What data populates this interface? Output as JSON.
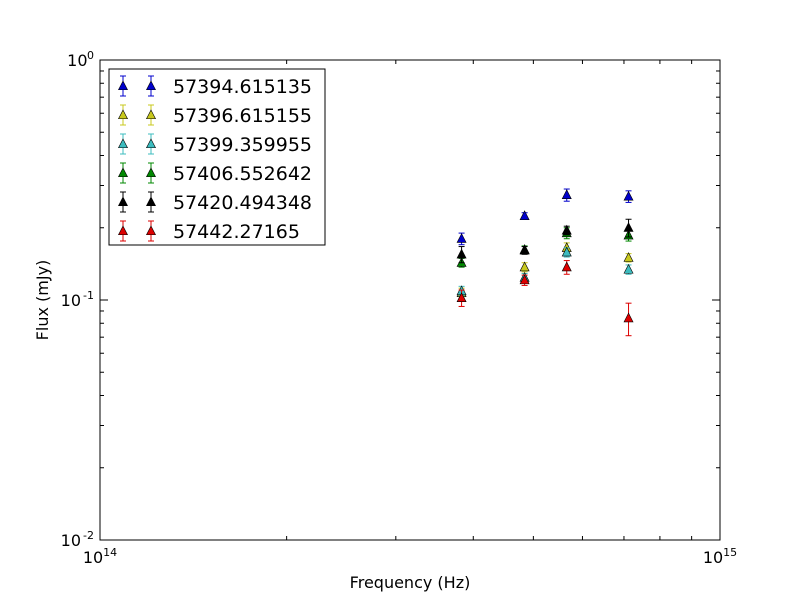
{
  "chart_data": {
    "type": "scatter",
    "title": "",
    "xlabel": "Frequency (Hz)",
    "ylabel": "Flux (mJy)",
    "xscale": "log",
    "yscale": "log",
    "xlim": [
      100000000000000.0,
      1000000000000000.0
    ],
    "ylim": [
      0.01,
      1.0
    ],
    "x_major_ticks": [
      {
        "value": 100000000000000.0,
        "base": "10",
        "exp": "14"
      },
      {
        "value": 1000000000000000.0,
        "base": "10",
        "exp": "15"
      }
    ],
    "y_major_ticks": [
      {
        "value": 0.01,
        "base": "10",
        "exp": "-2"
      },
      {
        "value": 0.1,
        "base": "10",
        "exp": "-1"
      },
      {
        "value": 1.0,
        "base": "10",
        "exp": "0"
      }
    ],
    "grid": false,
    "legend_position": "top-left",
    "marker": "triangle-up",
    "series": [
      {
        "name": "57394.615135",
        "color": "#0000cc",
        "points": [
          {
            "x": 383000000000000.0,
            "y": 0.18,
            "err": 0.01
          },
          {
            "x": 484000000000000.0,
            "y": 0.224,
            "err": 0.007
          },
          {
            "x": 566000000000000.0,
            "y": 0.274,
            "err": 0.016
          },
          {
            "x": 712000000000000.0,
            "y": 0.27,
            "err": 0.015
          }
        ]
      },
      {
        "name": "57396.615155",
        "color": "#c8c81e",
        "points": [
          {
            "x": 383000000000000.0,
            "y": 0.107,
            "err": 0.005
          },
          {
            "x": 484000000000000.0,
            "y": 0.137,
            "err": 0.006
          },
          {
            "x": 566000000000000.0,
            "y": 0.165,
            "err": 0.008
          },
          {
            "x": 712000000000000.0,
            "y": 0.15,
            "err": 0.006
          }
        ]
      },
      {
        "name": "57399.359955",
        "color": "#3cbcbf",
        "points": [
          {
            "x": 383000000000000.0,
            "y": 0.109,
            "err": 0.005
          },
          {
            "x": 484000000000000.0,
            "y": 0.124,
            "err": 0.005
          },
          {
            "x": 566000000000000.0,
            "y": 0.158,
            "err": 0.007
          },
          {
            "x": 712000000000000.0,
            "y": 0.134,
            "err": 0.006
          }
        ]
      },
      {
        "name": "57406.552642",
        "color": "#008800",
        "points": [
          {
            "x": 383000000000000.0,
            "y": 0.143,
            "err": 0.006
          },
          {
            "x": 484000000000000.0,
            "y": 0.162,
            "err": 0.006
          },
          {
            "x": 566000000000000.0,
            "y": 0.19,
            "err": 0.01
          },
          {
            "x": 712000000000000.0,
            "y": 0.186,
            "err": 0.01
          }
        ]
      },
      {
        "name": "57420.494348",
        "color": "#000000",
        "points": [
          {
            "x": 383000000000000.0,
            "y": 0.155,
            "err": 0.012
          },
          {
            "x": 484000000000000.0,
            "y": 0.161,
            "err": 0.006
          },
          {
            "x": 566000000000000.0,
            "y": 0.195,
            "err": 0.008
          },
          {
            "x": 712000000000000.0,
            "y": 0.2,
            "err": 0.017
          }
        ]
      },
      {
        "name": "57442.27165",
        "color": "#dd0000",
        "points": [
          {
            "x": 383000000000000.0,
            "y": 0.102,
            "err": 0.008
          },
          {
            "x": 484000000000000.0,
            "y": 0.121,
            "err": 0.006
          },
          {
            "x": 566000000000000.0,
            "y": 0.137,
            "err": 0.009
          },
          {
            "x": 712000000000000.0,
            "y": 0.084,
            "err": 0.013
          }
        ]
      }
    ]
  }
}
